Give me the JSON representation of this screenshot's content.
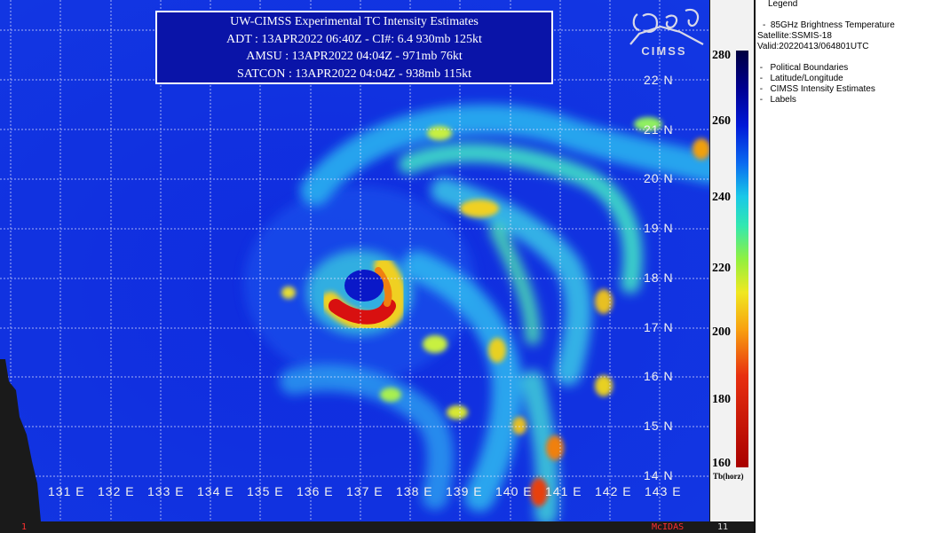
{
  "title_box": {
    "line1": "UW-CIMSS Experimental TC Intensity Estimates",
    "line2": "ADT : 13APR2022 06:40Z  -   CI#: 6.4   930mb   125kt",
    "line3": "AMSU : 13APR2022 04:04Z  -   971mb   76kt",
    "line4": "SATCON : 13APR2022 04:04Z  -   938mb   115kt"
  },
  "logo": {
    "text": "CIMSS",
    "icon": "cimss-logo-icon"
  },
  "latitudes": [
    "22 N",
    "21 N",
    "20 N",
    "19 N",
    "18 N",
    "17 N",
    "16 N",
    "15 N",
    "14 N"
  ],
  "longitudes": [
    "131 E",
    "132 E",
    "133 E",
    "134 E",
    "135 E",
    "136 E",
    "137 E",
    "138 E",
    "139 E",
    "140 E",
    "141 E",
    "142 E",
    "143 E"
  ],
  "colorbar": {
    "labels": [
      "280",
      "260",
      "240",
      "220",
      "200",
      "180",
      "160"
    ],
    "units": "Tb(horz)",
    "range": [
      160,
      280
    ]
  },
  "legend": {
    "title": "Legend",
    "product": "85GHz Brightness Temperature",
    "satellite": "Satellite:SSMIS-18",
    "valid": "Valid:20220413/064801UTC",
    "layers": [
      "Political Boundaries",
      "Latitude/Longitude",
      "CIMSS Intensity Estimates",
      "Labels"
    ]
  },
  "footer": {
    "frame_left": "1",
    "software": "McIDAS",
    "frame_right": "11"
  },
  "colors": {
    "background_cold": "#1a3cf0",
    "warm_core": "#d81010",
    "title_box": "#0a14a8"
  }
}
